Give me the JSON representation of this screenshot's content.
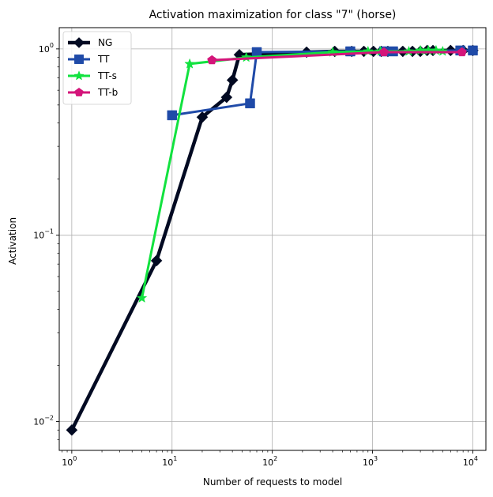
{
  "chart_data": {
    "type": "line",
    "title": "Activation maximization for class \"7\" (horse)",
    "xlabel": "Number of requests to model",
    "ylabel": "Activation",
    "xscale": "log",
    "yscale": "log",
    "xlim": [
      0.75,
      13500
    ],
    "ylim": [
      0.007,
      1.3
    ],
    "grid": true,
    "legend_position": "top-left",
    "x_ticks": [
      {
        "value": 1,
        "base": "10",
        "exp": "0"
      },
      {
        "value": 10,
        "base": "10",
        "exp": "1"
      },
      {
        "value": 100,
        "base": "10",
        "exp": "2"
      },
      {
        "value": 1000,
        "base": "10",
        "exp": "3"
      },
      {
        "value": 10000,
        "base": "10",
        "exp": "4"
      }
    ],
    "y_ticks": [
      {
        "value": 0.01,
        "base": "10",
        "exp": "−2"
      },
      {
        "value": 0.1,
        "base": "10",
        "exp": "−1"
      },
      {
        "value": 1,
        "base": "10",
        "exp": "0"
      }
    ],
    "series": [
      {
        "name": "NG",
        "color": "#020a22",
        "marker": "diamond",
        "linewidth": 4.5,
        "x": [
          1,
          7,
          20,
          35,
          40,
          47,
          220,
          420,
          620,
          820,
          1020,
          1220,
          1420,
          2000,
          2500,
          3000,
          3500,
          4000,
          6000,
          8000,
          10000
        ],
        "y": [
          0.009,
          0.073,
          0.43,
          0.55,
          0.68,
          0.93,
          0.96,
          0.97,
          0.97,
          0.97,
          0.97,
          0.97,
          0.97,
          0.97,
          0.97,
          0.97,
          0.98,
          0.98,
          0.98,
          0.98,
          0.98
        ]
      },
      {
        "name": "TT",
        "color": "#1f4aa8",
        "marker": "square",
        "linewidth": 3,
        "x": [
          10,
          60,
          70,
          600,
          1300,
          1600,
          7500,
          10000
        ],
        "y": [
          0.44,
          0.51,
          0.96,
          0.97,
          0.97,
          0.97,
          0.98,
          0.98
        ]
      },
      {
        "name": "TT-s",
        "color": "#12e23f",
        "marker": "star",
        "linewidth": 3,
        "x": [
          5,
          15,
          55,
          400,
          900,
          1200,
          2300,
          3000,
          3600,
          4300,
          5000
        ],
        "y": [
          0.046,
          0.83,
          0.9,
          0.96,
          0.97,
          0.97,
          0.97,
          0.98,
          0.98,
          0.98,
          0.97
        ]
      },
      {
        "name": "TT-b",
        "color": "#d4157a",
        "marker": "pentagon",
        "linewidth": 3,
        "x": [
          25,
          1300,
          7800
        ],
        "y": [
          0.87,
          0.96,
          0.96
        ]
      }
    ]
  }
}
